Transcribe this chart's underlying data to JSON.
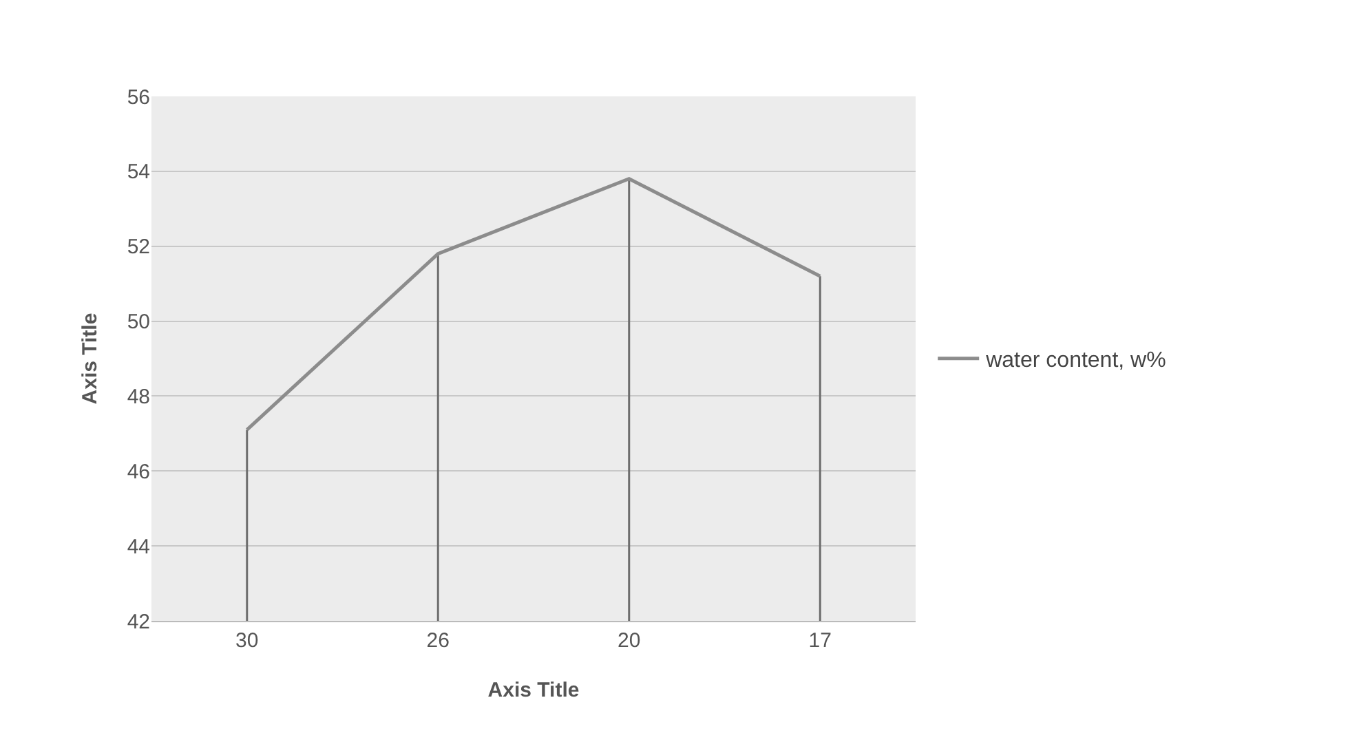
{
  "chart_data": {
    "type": "line",
    "xlabel": "Axis Title",
    "ylabel": "Axis Title",
    "categories": [
      "30",
      "26",
      "20",
      "17"
    ],
    "series": [
      {
        "name": "water content, w%",
        "color": "#8c8c8c",
        "values": [
          47.1,
          51.8,
          53.8,
          51.2
        ],
        "errors": [
          [
            42,
            47.1
          ],
          [
            42,
            51.8
          ],
          [
            42,
            53.8
          ],
          [
            42,
            51.2
          ]
        ]
      }
    ],
    "ylim": [
      42,
      56
    ],
    "yticks": [
      42,
      44,
      46,
      48,
      50,
      52,
      54,
      56
    ],
    "grid": "y",
    "legend": "right",
    "marker": "none",
    "line_style": "solid"
  }
}
